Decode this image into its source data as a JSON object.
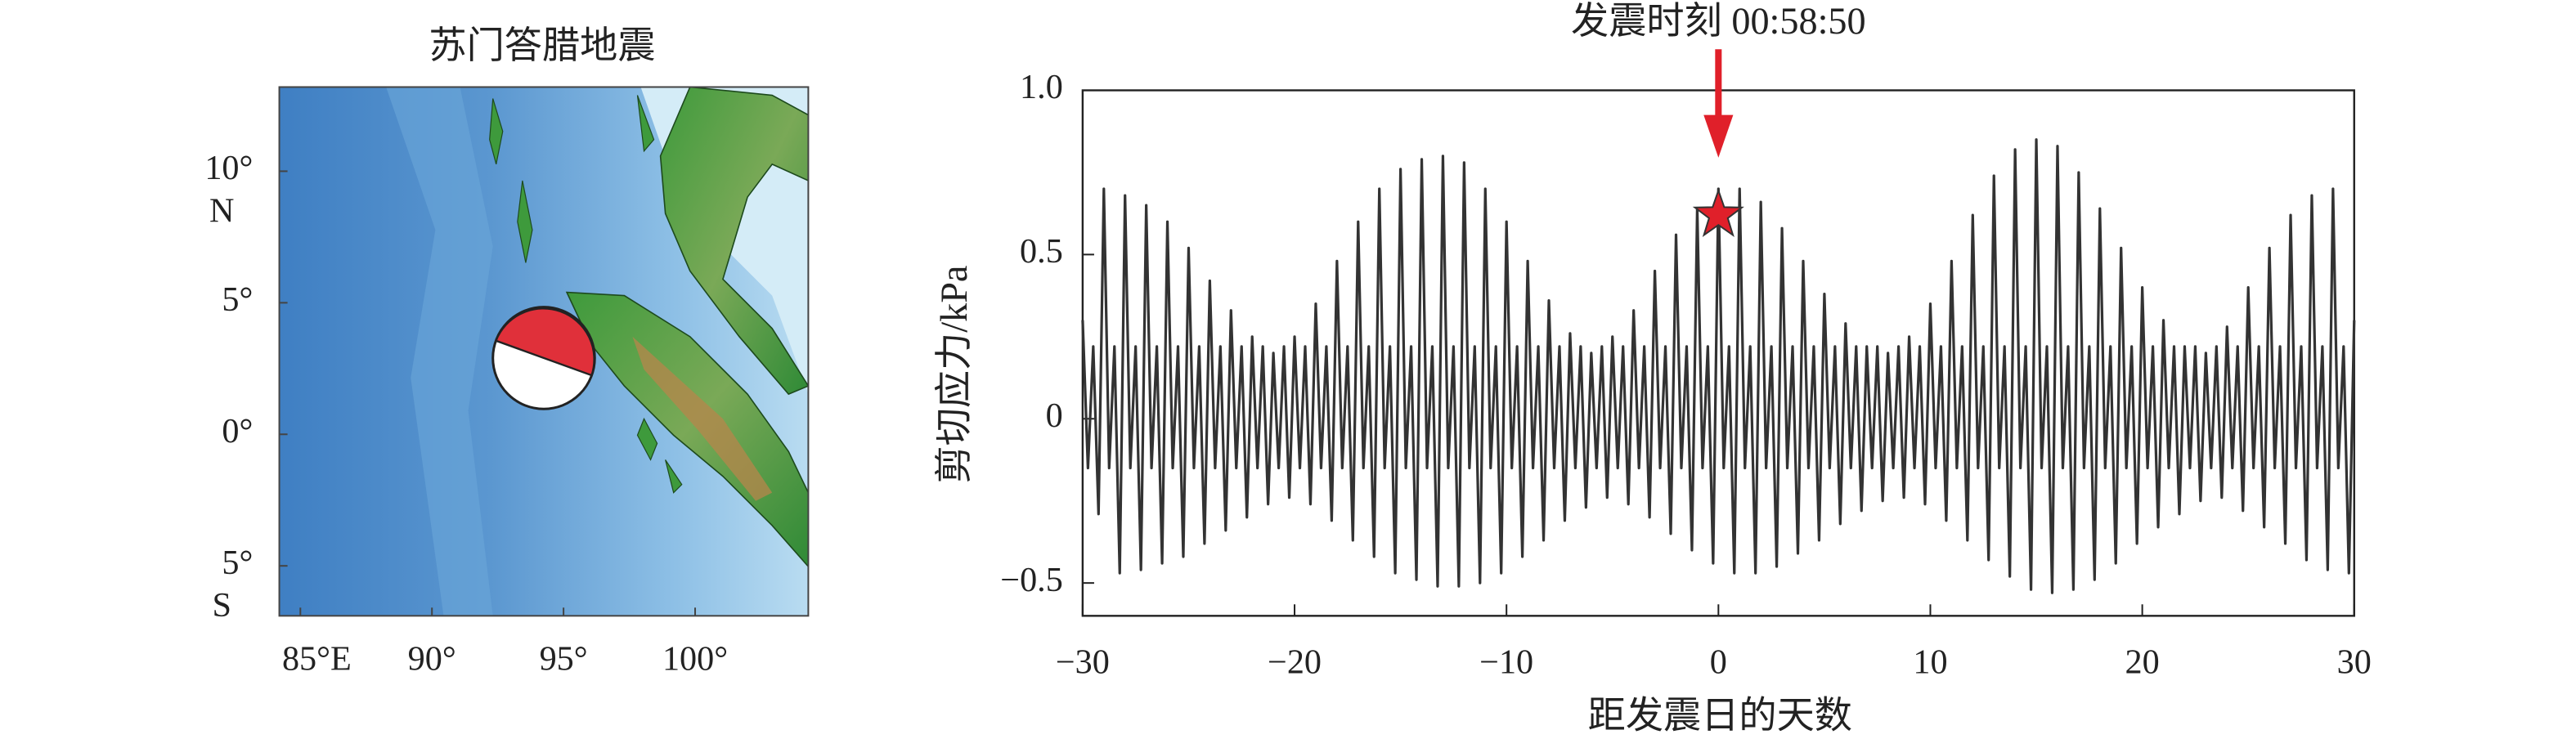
{
  "chart_data": [
    {
      "type": "map",
      "title": "苏门答腊地震",
      "xlim": [
        84.2,
        104.3
      ],
      "ylim": [
        -6.9,
        13.2
      ],
      "xticks": [
        {
          "value": 85,
          "label": "85°E"
        },
        {
          "value": 90,
          "label": "90°"
        },
        {
          "value": 95,
          "label": "95°"
        },
        {
          "value": 100,
          "label": "100°"
        }
      ],
      "yticks": [
        {
          "value": 10,
          "label": "10°",
          "hemisphere": "N"
        },
        {
          "value": 5,
          "label": "5°"
        },
        {
          "value": 0,
          "label": "0°"
        },
        {
          "value": -5,
          "label": "5°",
          "hemisphere": "S"
        }
      ],
      "epicenter": {
        "lon": 94.25,
        "lat": 2.9
      }
    },
    {
      "type": "line",
      "xlabel": "距发震日的天数",
      "ylabel": "剪切应力/kPa",
      "xlim": [
        -30,
        30
      ],
      "ylim": [
        -0.6,
        1.0
      ],
      "xticks": [
        {
          "value": -30,
          "label": "−30"
        },
        {
          "value": -20,
          "label": "−20"
        },
        {
          "value": -10,
          "label": "−10"
        },
        0,
        10,
        20,
        30
      ],
      "yticks": [
        {
          "value": 1,
          "label": "1.0"
        },
        0.5,
        0,
        {
          "value": -0.5,
          "label": "−0.5"
        }
      ],
      "event": {
        "x": 0,
        "y": 0.62,
        "label": "发震时刻 00:58:50",
        "color": "#e0202a"
      },
      "x": [
        -30,
        -29.75,
        -29.5,
        -29.25,
        -29,
        -28.75,
        -28.5,
        -28.25,
        -28,
        -27.75,
        -27.5,
        -27.25,
        -27,
        -26.75,
        -26.5,
        -26.25,
        -26,
        -25.75,
        -25.5,
        -25.25,
        -25,
        -24.75,
        -24.5,
        -24.25,
        -24,
        -23.75,
        -23.5,
        -23.25,
        -23,
        -22.75,
        -22.5,
        -22.25,
        -22,
        -21.75,
        -21.5,
        -21.25,
        -21,
        -20.75,
        -20.5,
        -20.25,
        -20,
        -19.75,
        -19.5,
        -19.25,
        -19,
        -18.75,
        -18.5,
        -18.25,
        -18,
        -17.75,
        -17.5,
        -17.25,
        -17,
        -16.75,
        -16.5,
        -16.25,
        -16,
        -15.75,
        -15.5,
        -15.25,
        -15,
        -14.75,
        -14.5,
        -14.25,
        -14,
        -13.75,
        -13.5,
        -13.25,
        -13,
        -12.75,
        -12.5,
        -12.25,
        -12,
        -11.75,
        -11.5,
        -11.25,
        -11,
        -10.75,
        -10.5,
        -10.25,
        -10,
        -9.75,
        -9.5,
        -9.25,
        -9,
        -8.75,
        -8.5,
        -8.25,
        -8,
        -7.75,
        -7.5,
        -7.25,
        -7,
        -6.75,
        -6.5,
        -6.25,
        -6,
        -5.75,
        -5.5,
        -5.25,
        -5,
        -4.75,
        -4.5,
        -4.25,
        -4,
        -3.75,
        -3.5,
        -3.25,
        -3,
        -2.75,
        -2.5,
        -2.25,
        -2,
        -1.75,
        -1.5,
        -1.25,
        -1,
        -0.75,
        -0.5,
        -0.25,
        0,
        0.25,
        0.5,
        0.75,
        1,
        1.25,
        1.5,
        1.75,
        2,
        2.25,
        2.5,
        2.75,
        3,
        3.25,
        3.5,
        3.75,
        4,
        4.25,
        4.5,
        4.75,
        5,
        5.25,
        5.5,
        5.75,
        6,
        6.25,
        6.5,
        6.75,
        7,
        7.25,
        7.5,
        7.75,
        8,
        8.25,
        8.5,
        8.75,
        9,
        9.25,
        9.5,
        9.75,
        10,
        10.25,
        10.5,
        10.75,
        11,
        11.25,
        11.5,
        11.75,
        12,
        12.25,
        12.5,
        12.75,
        13,
        13.25,
        13.5,
        13.75,
        14,
        14.25,
        14.5,
        14.75,
        15,
        15.25,
        15.5,
        15.75,
        16,
        16.25,
        16.5,
        16.75,
        17,
        17.25,
        17.5,
        17.75,
        18,
        18.25,
        18.5,
        18.75,
        19,
        19.25,
        19.5,
        19.75,
        20,
        20.25,
        20.5,
        20.75,
        21,
        21.25,
        21.5,
        21.75,
        22,
        22.25,
        22.5,
        22.75,
        23,
        23.25,
        23.5,
        23.75,
        24,
        24.25,
        24.5,
        24.75,
        25,
        25.25,
        25.5,
        25.75,
        26,
        26.25,
        26.5,
        26.75,
        27,
        27.25,
        27.5,
        27.75,
        28,
        28.25,
        28.5,
        28.75,
        29,
        29.25,
        29.5,
        29.75,
        30
      ],
      "series": [
        {
          "color": "#333333",
          "values": [
            0.3,
            -0.15,
            0.22,
            -0.29,
            0.7,
            -0.15,
            0.22,
            -0.47,
            0.68,
            -0.15,
            0.22,
            -0.46,
            0.65,
            -0.15,
            0.22,
            -0.44,
            0.6,
            -0.15,
            0.22,
            -0.42,
            0.52,
            -0.15,
            0.22,
            -0.38,
            0.42,
            -0.15,
            0.22,
            -0.34,
            0.33,
            -0.15,
            0.22,
            -0.3,
            0.25,
            -0.15,
            0.22,
            -0.26,
            0.2,
            -0.15,
            0.22,
            -0.24,
            0.25,
            -0.15,
            0.22,
            -0.26,
            0.35,
            -0.15,
            0.22,
            -0.31,
            0.48,
            -0.15,
            0.22,
            -0.37,
            0.6,
            -0.15,
            0.22,
            -0.42,
            0.7,
            -0.15,
            0.22,
            -0.47,
            0.76,
            -0.15,
            0.22,
            -0.49,
            0.79,
            -0.15,
            0.22,
            -0.51,
            0.8,
            -0.15,
            0.22,
            -0.51,
            0.78,
            -0.15,
            0.22,
            -0.5,
            0.7,
            -0.15,
            0.22,
            -0.47,
            0.6,
            -0.15,
            0.22,
            -0.42,
            0.48,
            -0.15,
            0.22,
            -0.37,
            0.36,
            -0.15,
            0.22,
            -0.31,
            0.26,
            -0.15,
            0.22,
            -0.27,
            0.2,
            -0.15,
            0.22,
            -0.24,
            0.25,
            -0.15,
            0.22,
            -0.26,
            0.33,
            -0.15,
            0.22,
            -0.3,
            0.45,
            -0.15,
            0.22,
            -0.35,
            0.56,
            -0.15,
            0.22,
            -0.4,
            0.64,
            -0.15,
            0.22,
            -0.44,
            0.7,
            -0.15,
            0.22,
            -0.47,
            0.7,
            -0.15,
            0.22,
            -0.47,
            0.66,
            -0.15,
            0.22,
            -0.45,
            0.58,
            -0.15,
            0.22,
            -0.41,
            0.48,
            -0.15,
            0.22,
            -0.37,
            0.38,
            -0.15,
            0.22,
            -0.32,
            0.29,
            -0.15,
            0.22,
            -0.28,
            0.22,
            -0.15,
            0.22,
            -0.25,
            0.2,
            -0.15,
            0.22,
            -0.24,
            0.25,
            -0.15,
            0.22,
            -0.26,
            0.35,
            -0.15,
            0.22,
            -0.31,
            0.48,
            -0.15,
            0.22,
            -0.37,
            0.62,
            -0.15,
            0.22,
            -0.43,
            0.74,
            -0.15,
            0.22,
            -0.48,
            0.82,
            -0.15,
            0.22,
            -0.52,
            0.85,
            -0.15,
            0.22,
            -0.53,
            0.83,
            -0.15,
            0.22,
            -0.52,
            0.75,
            -0.15,
            0.22,
            -0.49,
            0.64,
            -0.15,
            0.22,
            -0.44,
            0.52,
            -0.15,
            0.22,
            -0.38,
            0.4,
            -0.15,
            0.22,
            -0.33,
            0.3,
            -0.15,
            0.22,
            -0.29,
            0.22,
            -0.15,
            0.22,
            -0.25,
            0.2,
            -0.15,
            0.22,
            -0.24,
            0.28,
            -0.15,
            0.22,
            -0.28,
            0.4,
            -0.15,
            0.22,
            -0.33,
            0.52,
            -0.15,
            0.22,
            -0.38,
            0.62,
            -0.15,
            0.22,
            -0.43,
            0.68,
            -0.15,
            0.22,
            -0.46,
            0.7,
            -0.15,
            0.22,
            -0.47,
            0.3
          ]
        }
      ]
    }
  ]
}
